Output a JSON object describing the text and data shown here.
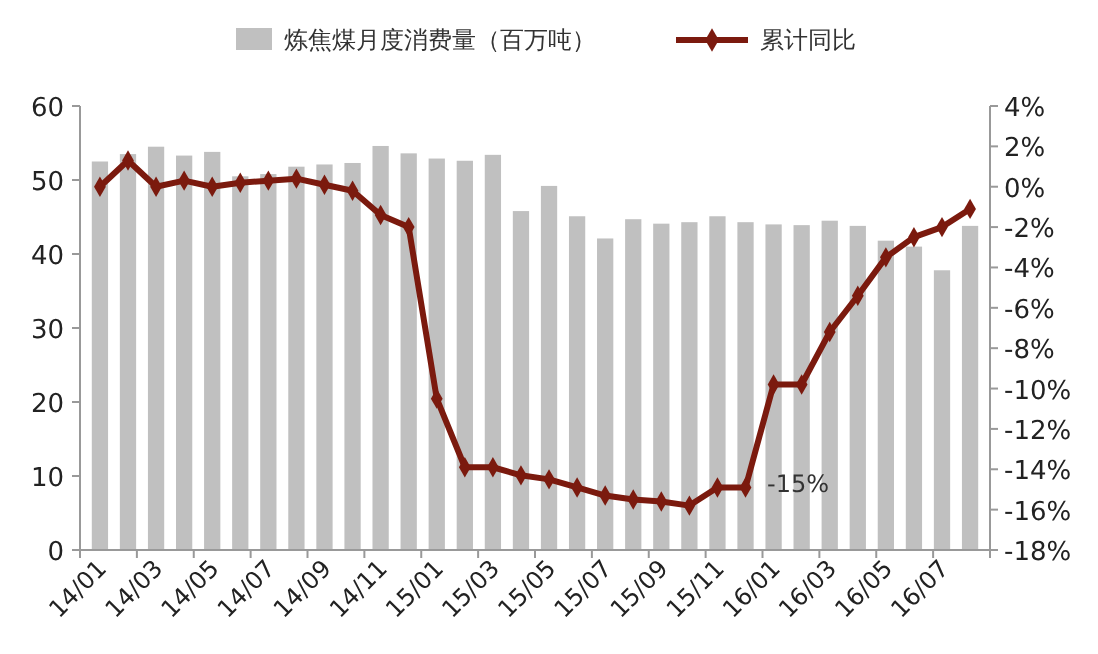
{
  "chart_data": {
    "type": "bar",
    "categories": [
      "14/01",
      null,
      "14/03",
      null,
      "14/05",
      null,
      "14/07",
      null,
      "14/09",
      null,
      "14/11",
      null,
      "15/01",
      null,
      "15/03",
      null,
      "15/05",
      null,
      "15/07",
      null,
      "15/09",
      null,
      "15/11",
      null,
      "16/01",
      null,
      "16/03",
      null,
      "16/05",
      null,
      "16/07",
      null
    ],
    "series": [
      {
        "name": "炼焦煤月度消费量（百万吨）",
        "color": "#c0c0c0",
        "values": [
          52.5,
          53.5,
          54.5,
          53.3,
          53.8,
          50.5,
          50.8,
          51.8,
          52.1,
          52.3,
          54.6,
          53.6,
          52.9,
          52.6,
          53.4,
          45.8,
          49.2,
          45.1,
          42.1,
          44.7,
          44.1,
          44.3,
          45.1,
          44.3,
          44.0,
          43.9,
          44.5,
          43.8,
          41.8,
          41.0,
          37.8,
          43.8
        ]
      },
      {
        "name": "累计同比",
        "type": "line",
        "axis": "y2",
        "color": "#7b1a0e",
        "marker": "diamond",
        "values": [
          0.0,
          1.3,
          0.0,
          0.3,
          0.0,
          0.2,
          0.3,
          0.4,
          0.1,
          -0.2,
          -1.4,
          -2.0,
          -10.5,
          -13.9,
          -13.9,
          -14.3,
          -14.5,
          -14.9,
          -15.3,
          -15.5,
          -15.6,
          -15.8,
          -14.9,
          -14.9,
          -9.8,
          -9.8,
          -7.2,
          -5.4,
          -3.5,
          -2.5,
          -2.0,
          -1.1
        ]
      }
    ],
    "ylim": [
      0,
      60
    ],
    "yticks": [
      0,
      10,
      20,
      30,
      40,
      50,
      60
    ],
    "y2lim": [
      -18,
      4
    ],
    "y2ticks": [
      {
        "value": -18,
        "label": "-18%"
      },
      {
        "value": -16,
        "label": "-16%"
      },
      {
        "value": -14,
        "label": "-14%"
      },
      {
        "value": -12,
        "label": "-12%"
      },
      {
        "value": -10,
        "label": "-10%"
      },
      {
        "value": -8,
        "label": "-8%"
      },
      {
        "value": -6,
        "label": "-6%"
      },
      {
        "value": -4,
        "label": "-4%"
      },
      {
        "value": -2,
        "label": "-2%"
      },
      {
        "value": 0,
        "label": "0%"
      },
      {
        "value": 2,
        "label": "2%"
      },
      {
        "value": 4,
        "label": "4%"
      }
    ],
    "annotations": [
      "-15%"
    ],
    "legend": "top",
    "grid": false
  }
}
